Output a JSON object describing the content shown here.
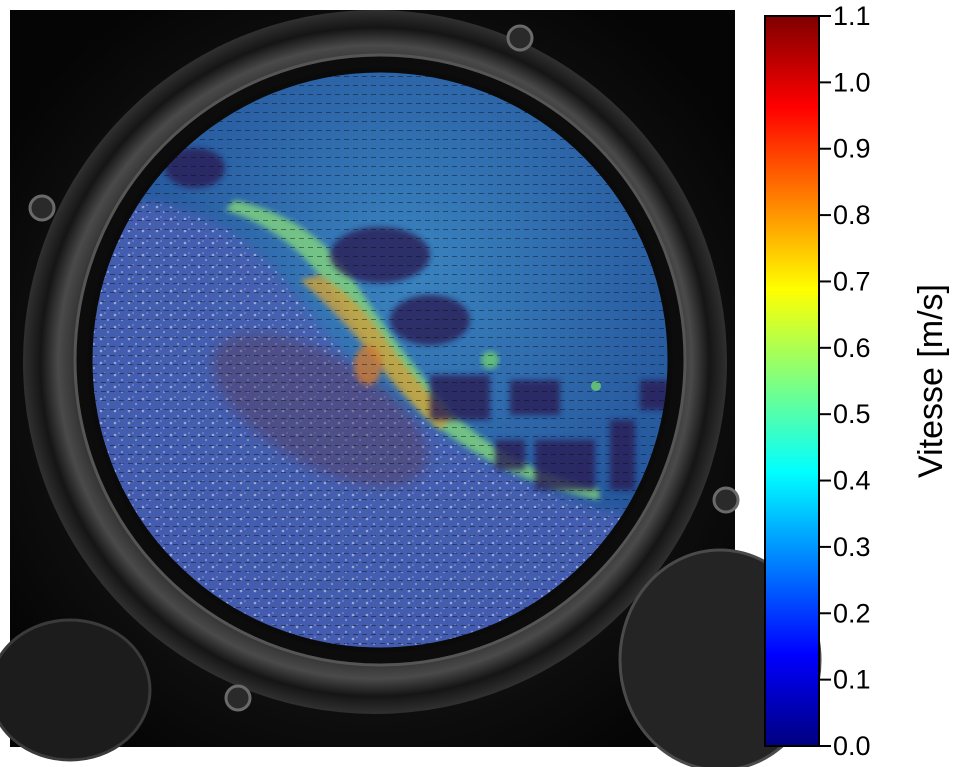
{
  "chart_data": {
    "type": "heatmap",
    "description_visible": "PIV velocity field overlaid on a photograph of a circular viewing port; colour encodes speed magnitude",
    "colorbar": {
      "label": "Vitesse [m/s]",
      "min": 0.0,
      "max": 1.1,
      "ticks": [
        0.0,
        0.1,
        0.2,
        0.3,
        0.4,
        0.5,
        0.6,
        0.7,
        0.8,
        0.9,
        1.0,
        1.1
      ],
      "tick_labels": [
        "0.0",
        "0.1",
        "0.2",
        "0.3",
        "0.4",
        "0.5",
        "0.6",
        "0.7",
        "0.8",
        "0.9",
        "1.0",
        "1.1"
      ],
      "colormap": "jet",
      "colormap_stops": [
        "#00007f",
        "#0000ff",
        "#007fff",
        "#00ffff",
        "#7fff7f",
        "#ffff00",
        "#ff7f00",
        "#ff0000",
        "#7f0000"
      ]
    },
    "field_regions": [
      {
        "name": "background-flow",
        "speed": 0.25,
        "color": "#2f6aa8"
      },
      {
        "name": "high-speed-band",
        "speed": 0.7,
        "color": "#b8d64a"
      },
      {
        "name": "band-core",
        "speed": 0.85,
        "color": "#d08a3a"
      },
      {
        "name": "low-speed-pockets",
        "speed": 0.05,
        "color": "#1e2a6e"
      },
      {
        "name": "particle-bed",
        "speed": 0.3,
        "color": "#8da0d8"
      }
    ]
  }
}
